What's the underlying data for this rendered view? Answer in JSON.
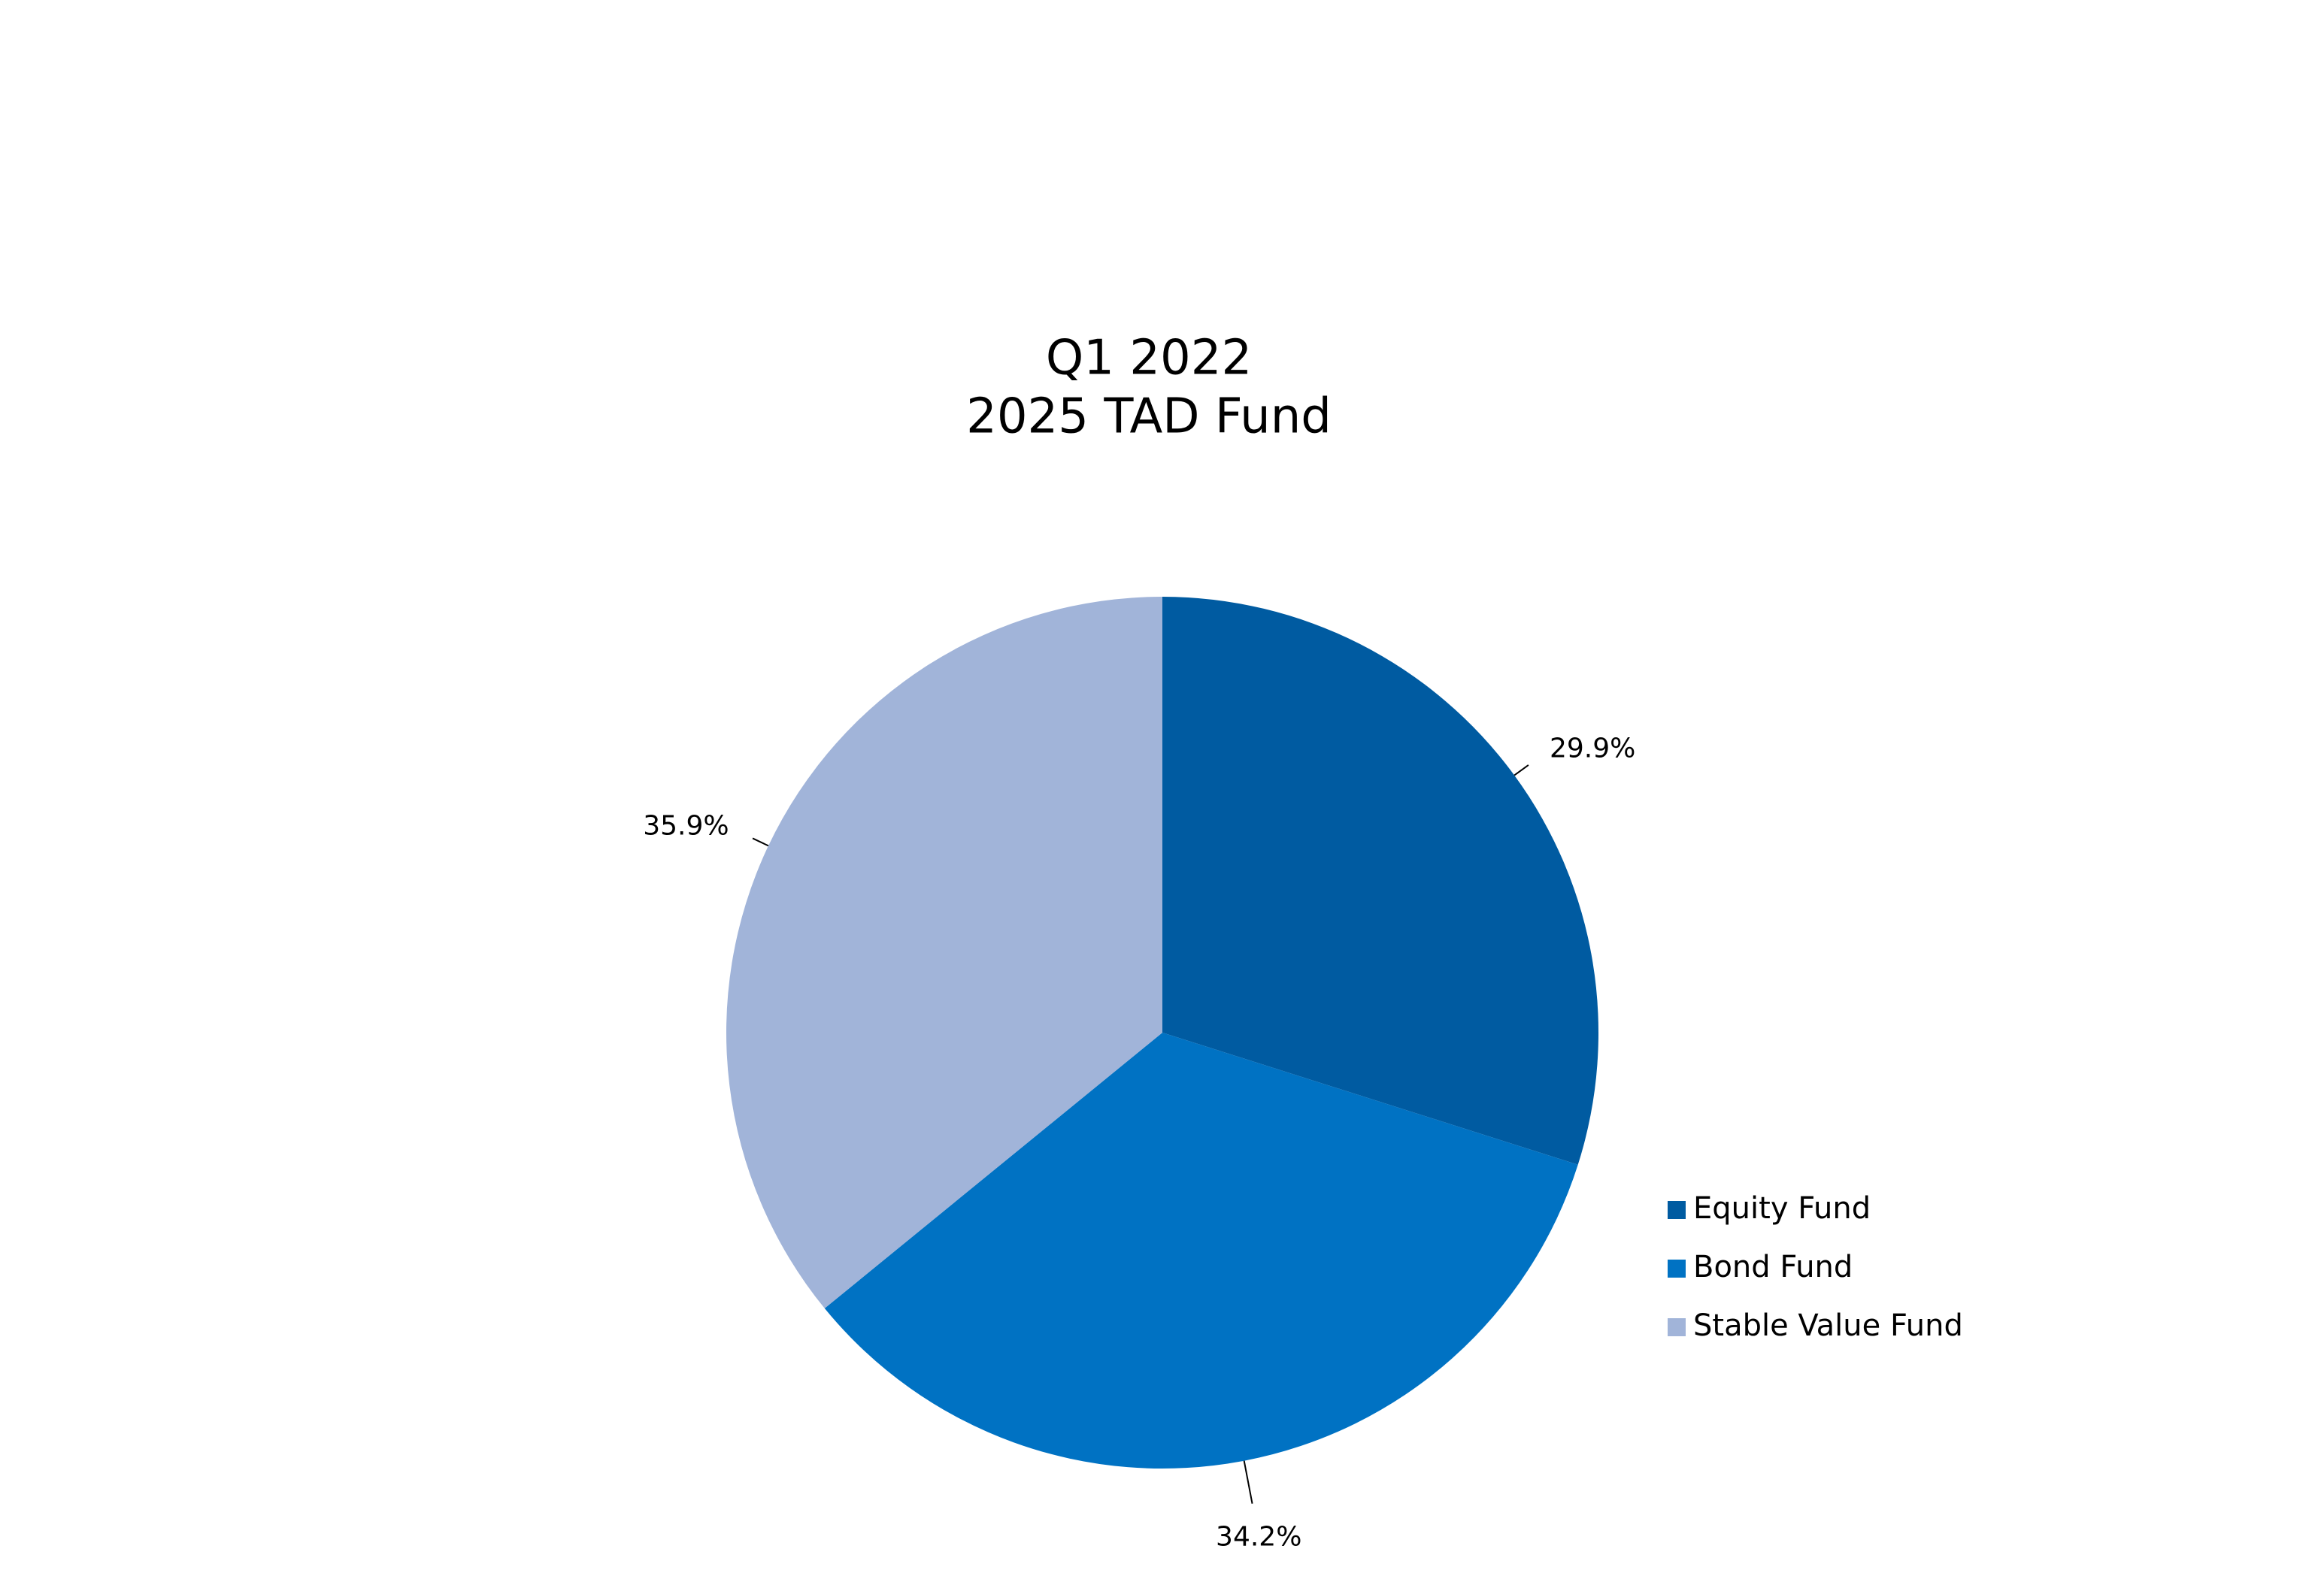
{
  "chart_data": {
    "type": "pie",
    "title": "Q1 2022",
    "subtitle": "2025 TAD Fund",
    "categories": [
      "Equity Fund",
      "Bond Fund",
      "Stable Value Fund"
    ],
    "values": [
      29.9,
      34.2,
      35.9
    ],
    "value_labels": [
      "29.9%",
      "34.2%",
      "35.9%"
    ],
    "colors": [
      "#005ba1",
      "#0072c3",
      "#a1b4d9"
    ],
    "legend": "right"
  }
}
